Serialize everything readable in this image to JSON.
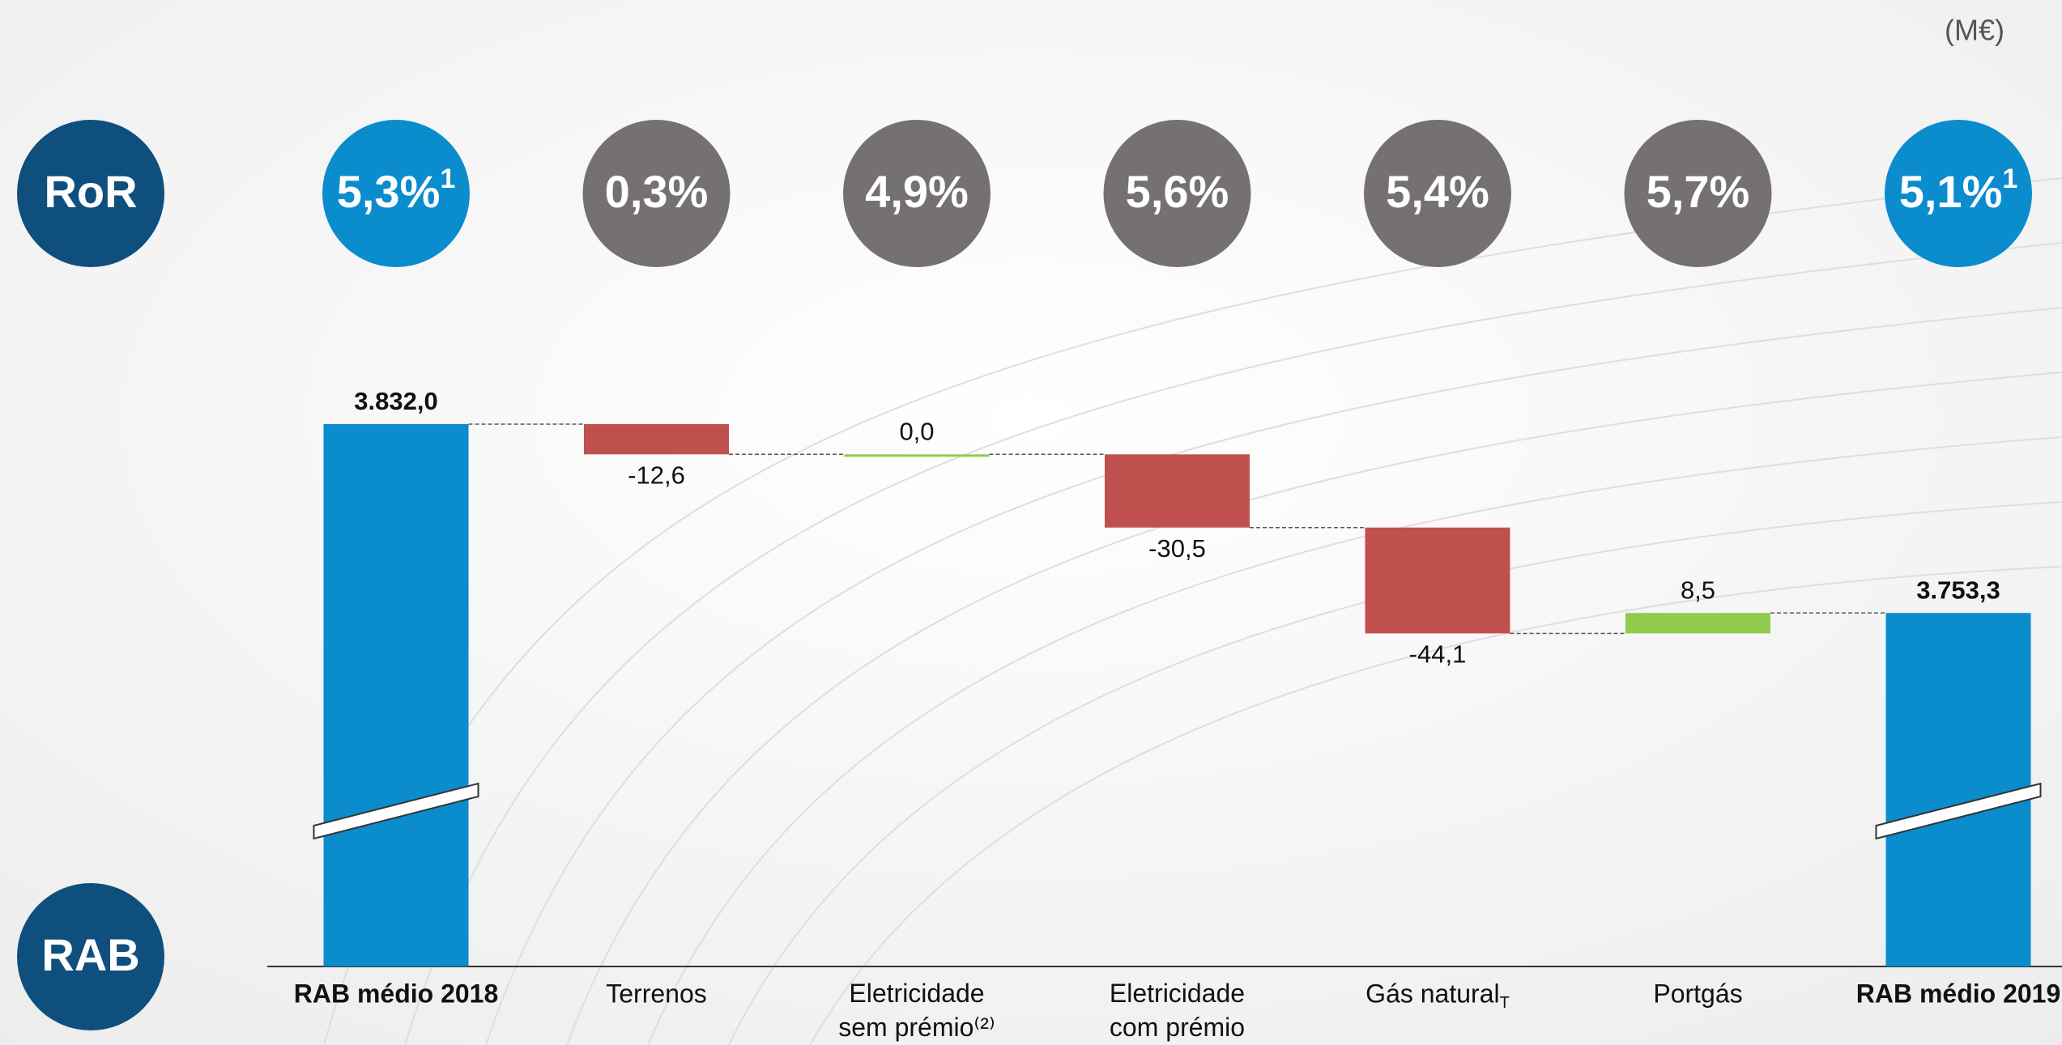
{
  "chart_data": {
    "type": "waterfall",
    "unit": "(M€)",
    "row_labels": [
      "RoR",
      "RAB"
    ],
    "ror": [
      "5,3%",
      "0,3%",
      "4,9%",
      "5,6%",
      "5,4%",
      "5,7%",
      "5,1%"
    ],
    "ror_notes": [
      "1",
      null,
      null,
      null,
      null,
      null,
      "1"
    ],
    "ror_colors": [
      "#0a8ccd",
      "#767171",
      "#767171",
      "#767171",
      "#767171",
      "#767171",
      "#0a8ccd"
    ],
    "categories": [
      "RAB médio 2018",
      "Terrenos",
      "Eletricidade sem prémio⁽²⁾",
      "Eletricidade com prémio",
      "Gás natural",
      "Portgás",
      "RAB médio 2019"
    ],
    "category_subscripts": [
      null,
      null,
      null,
      null,
      "T",
      null,
      null
    ],
    "values": [
      3832.0,
      -12.6,
      0.0,
      -30.5,
      -44.1,
      8.5,
      3753.3
    ],
    "value_labels": [
      "3.832,0",
      "-12,6",
      "0,0",
      "-30,5",
      "-44,1",
      "8,5",
      "3.753,3"
    ],
    "colors": [
      "#0a8ccd",
      "#c0504d",
      "#92c94f",
      "#c0504d",
      "#c0504d",
      "#92c94f",
      "#0a8ccd"
    ],
    "ylim": [
      3606,
      3862
    ],
    "axis_break": true
  }
}
